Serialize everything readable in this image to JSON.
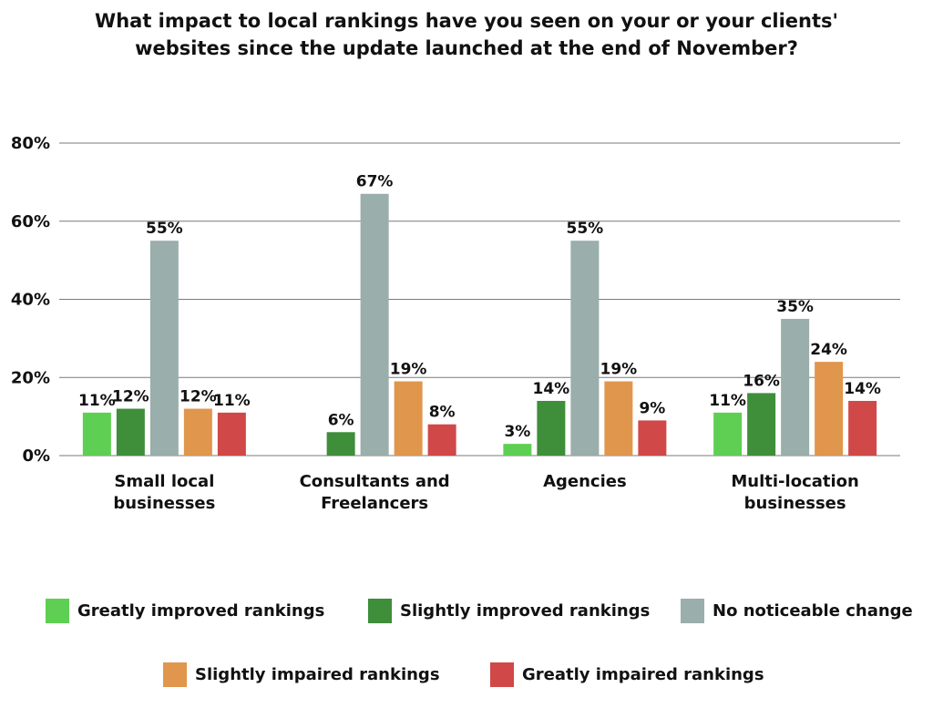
{
  "chart_data": {
    "type": "bar",
    "title_lines": [
      "What impact to local rankings have you seen on your or your clients'",
      "websites since the update launched at the end of November?"
    ],
    "categories": [
      [
        "Small local",
        "businesses"
      ],
      [
        "Consultants and",
        "Freelancers"
      ],
      [
        "Agencies"
      ],
      [
        "Multi-location",
        "businesses"
      ]
    ],
    "series": [
      {
        "name": "Greatly improved rankings",
        "color": "#5ecf52",
        "values": [
          11,
          0,
          3,
          11
        ],
        "labels": [
          "11%",
          "",
          "3%",
          "11%"
        ]
      },
      {
        "name": "Slightly improved rankings",
        "color": "#3e8e3a",
        "values": [
          12,
          6,
          14,
          16
        ],
        "labels": [
          "12%",
          "6%",
          "14%",
          "16%"
        ]
      },
      {
        "name": "No noticeable change",
        "color": "#9aaeab",
        "values": [
          55,
          67,
          55,
          35
        ],
        "labels": [
          "55%",
          "67%",
          "55%",
          "35%"
        ]
      },
      {
        "name": "Slightly impaired rankings",
        "color": "#e0964c",
        "values": [
          12,
          19,
          19,
          24
        ],
        "labels": [
          "12%",
          "19%",
          "19%",
          "24%"
        ]
      },
      {
        "name": "Greatly impaired rankings",
        "color": "#d04848",
        "values": [
          11,
          8,
          9,
          14
        ],
        "labels": [
          "11%",
          "8%",
          "9%",
          "14%"
        ]
      }
    ],
    "ylim": [
      0,
      80
    ],
    "yticks": [
      0,
      20,
      40,
      60,
      80
    ],
    "ytick_labels": [
      "0%",
      "20%",
      "40%",
      "60%",
      "80%"
    ],
    "grid": true,
    "legend_position": "bottom"
  }
}
